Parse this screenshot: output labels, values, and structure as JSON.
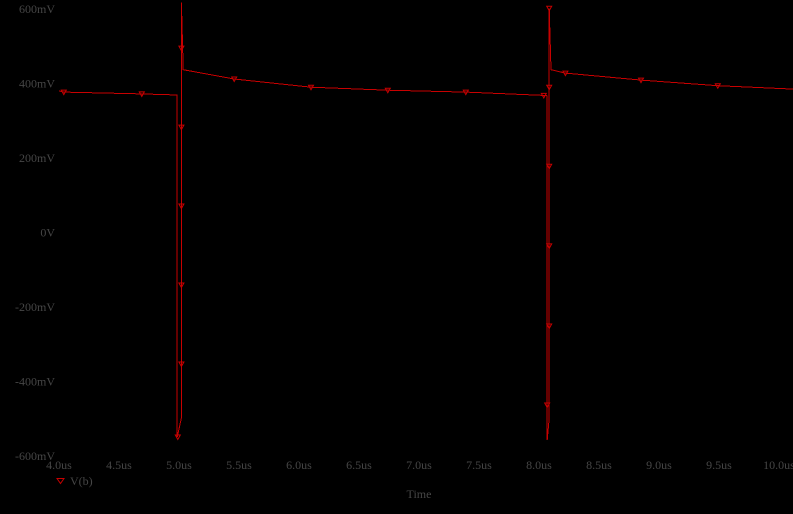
{
  "window": {
    "background": "#000000"
  },
  "legend": {
    "label": "V(b)"
  },
  "chart_data": {
    "type": "line",
    "title": "",
    "xlabel": "Time",
    "grid": false,
    "background": "#000000",
    "text_color": "#464646",
    "xlim_us": [
      4.0,
      10.0
    ],
    "ylim_mV": [
      -600,
      600
    ],
    "x_ticks": [
      {
        "label": "4.0us",
        "t": 4.0
      },
      {
        "label": "4.5us",
        "t": 4.5
      },
      {
        "label": "5.0us",
        "t": 5.0
      },
      {
        "label": "5.5us",
        "t": 5.5
      },
      {
        "label": "6.0us",
        "t": 6.0
      },
      {
        "label": "6.5us",
        "t": 6.5
      },
      {
        "label": "7.0us",
        "t": 7.0
      },
      {
        "label": "7.5us",
        "t": 7.5
      },
      {
        "label": "8.0us",
        "t": 8.0
      },
      {
        "label": "8.5us",
        "t": 8.5
      },
      {
        "label": "9.0us",
        "t": 9.0
      },
      {
        "label": "9.5us",
        "t": 9.5
      },
      {
        "label": "10.0us",
        "t": 10.0
      }
    ],
    "y_ticks": [
      {
        "label": "600mV",
        "v": 600
      },
      {
        "label": "400mV",
        "v": 400
      },
      {
        "label": "200mV",
        "v": 200
      },
      {
        "label": "0V",
        "v": 0
      },
      {
        "label": "-200mV",
        "v": -200
      },
      {
        "label": "-400mV",
        "v": -400
      },
      {
        "label": "-600mV",
        "v": -600
      }
    ],
    "legend_position": "bottom-left",
    "series": [
      {
        "name": "V(b)",
        "color": "#c80000",
        "marker": "triangle-down-open",
        "points": [
          [
            4.0,
            380
          ],
          [
            4.04,
            377
          ],
          [
            4.69,
            372
          ],
          [
            4.985,
            369
          ],
          [
            4.985,
            -549
          ],
          [
            5.02,
            -498
          ],
          [
            5.02,
            617
          ],
          [
            5.035,
            437
          ],
          [
            5.46,
            412
          ],
          [
            6.1,
            390
          ],
          [
            6.74,
            382
          ],
          [
            7.39,
            377
          ],
          [
            8.04,
            368
          ],
          [
            8.068,
            367
          ],
          [
            8.068,
            -557
          ],
          [
            8.085,
            -498
          ],
          [
            8.085,
            602
          ],
          [
            8.1,
            437
          ],
          [
            8.22,
            428
          ],
          [
            8.85,
            409
          ],
          [
            9.49,
            394
          ],
          [
            10.12,
            385
          ]
        ],
        "marker_points": [
          [
            4.04,
            377
          ],
          [
            4.69,
            372
          ],
          [
            5.02,
            495
          ],
          [
            5.02,
            283
          ],
          [
            5.02,
            71
          ],
          [
            5.02,
            -141
          ],
          [
            5.02,
            -353
          ],
          [
            4.99,
            -549
          ],
          [
            5.46,
            412
          ],
          [
            6.1,
            390
          ],
          [
            6.74,
            382
          ],
          [
            7.39,
            377
          ],
          [
            8.04,
            368
          ],
          [
            8.085,
            602
          ],
          [
            8.085,
            390
          ],
          [
            8.085,
            178
          ],
          [
            8.085,
            -36
          ],
          [
            8.085,
            -251
          ],
          [
            8.068,
            -463
          ],
          [
            8.22,
            428
          ],
          [
            8.85,
            409
          ],
          [
            9.49,
            394
          ]
        ]
      }
    ]
  }
}
